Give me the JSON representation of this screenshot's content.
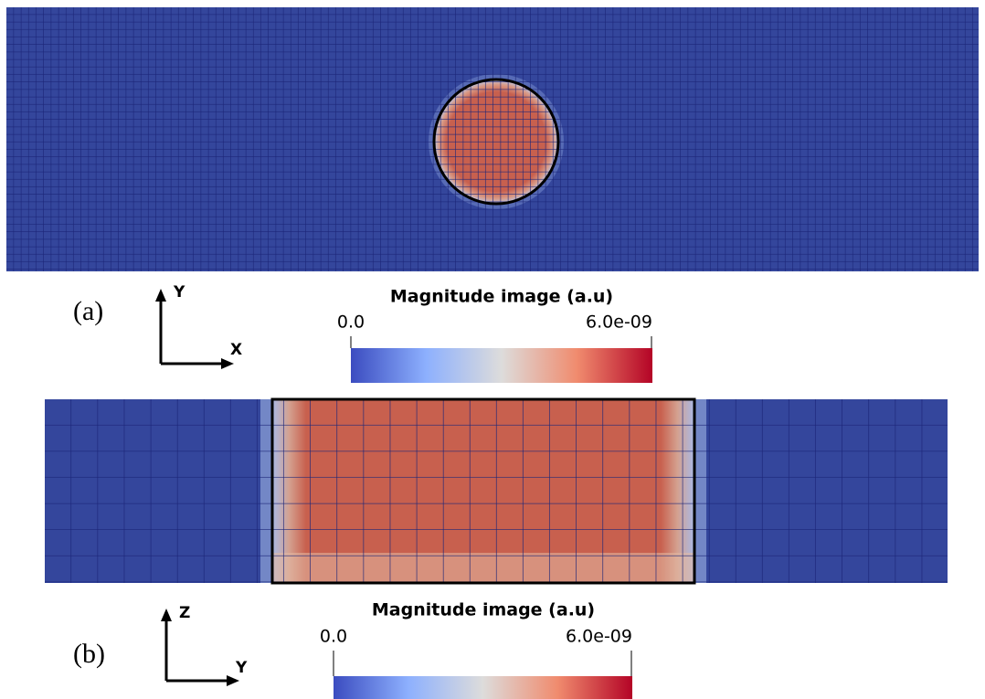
{
  "panels": [
    {
      "label": "(a)",
      "axis_vertical": "Y",
      "axis_horizontal": "X",
      "colorbar": {
        "title": "Magnitude image (a.u)",
        "min_label": "0.0",
        "max_label": "6.0e-09"
      }
    },
    {
      "label": "(b)",
      "axis_vertical": "Z",
      "axis_horizontal": "Y",
      "colorbar": {
        "title": "Magnitude image (a.u)",
        "min_label": "0.0",
        "max_label": "6.0e-09"
      }
    }
  ]
}
